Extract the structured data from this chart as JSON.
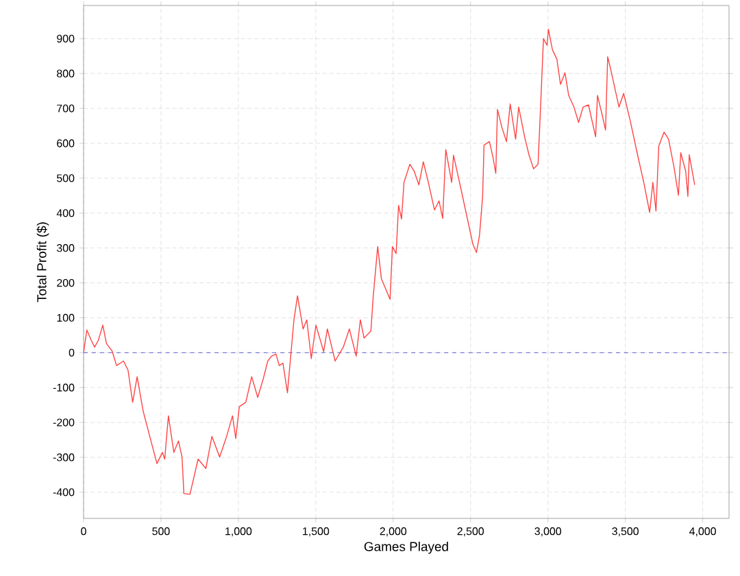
{
  "chart_data": {
    "type": "line",
    "xlabel": "Games Played",
    "ylabel": "Total Profit ($)",
    "xlim": [
      0,
      4170
    ],
    "ylim": [
      -475,
      995
    ],
    "xticks": [
      0,
      500,
      {
        "value": 1000,
        "label": "1,000"
      },
      {
        "value": 1500,
        "label": "1,500"
      },
      {
        "value": 2000,
        "label": "2,000"
      },
      {
        "value": 2500,
        "label": "2,500"
      },
      {
        "value": 3000,
        "label": "3,000"
      },
      {
        "value": 3500,
        "label": "3,500"
      },
      {
        "value": 4000,
        "label": "4,000"
      }
    ],
    "yticks": [
      -400,
      -300,
      -200,
      -100,
      0,
      100,
      200,
      300,
      400,
      500,
      600,
      700,
      800,
      900
    ],
    "grid": true,
    "line_style": "solid",
    "ref_lines": [
      {
        "axis": "y",
        "value": 0,
        "color": "#5a5ad2",
        "line_style": "dashed"
      }
    ],
    "series": [
      {
        "color": "#ff4444",
        "x": [
          0,
          21,
          50,
          71,
          95,
          124,
          148,
          184,
          213,
          258,
          287,
          317,
          346,
          385,
          420,
          474,
          509,
          524,
          548,
          583,
          613,
          636,
          648,
          687,
          740,
          790,
          829,
          879,
          924,
          962,
          983,
          1006,
          1048,
          1086,
          1125,
          1160,
          1190,
          1214,
          1243,
          1264,
          1288,
          1317,
          1338,
          1359,
          1382,
          1418,
          1442,
          1471,
          1501,
          1551,
          1575,
          1625,
          1678,
          1717,
          1761,
          1788,
          1812,
          1856,
          1871,
          1900,
          1924,
          1980,
          1995,
          2019,
          2035,
          2054,
          2070,
          2108,
          2136,
          2166,
          2195,
          2224,
          2267,
          2296,
          2320,
          2340,
          2378,
          2390,
          2442,
          2515,
          2538,
          2558,
          2578,
          2587,
          2622,
          2645,
          2663,
          2674,
          2703,
          2732,
          2756,
          2791,
          2811,
          2849,
          2878,
          2907,
          2936,
          2953,
          2971,
          2994,
          3003,
          3029,
          3058,
          3081,
          3110,
          3134,
          3168,
          3198,
          3227,
          3262,
          3308,
          3320,
          3349,
          3372,
          3386,
          3407,
          3459,
          3489,
          3532,
          3576,
          3619,
          3657,
          3678,
          3698,
          3716,
          3750,
          3779,
          3814,
          3843,
          3858,
          3890,
          3904,
          3913,
          3948
        ],
        "values": [
          0,
          65,
          35,
          16,
          35,
          79,
          26,
          5,
          -37,
          -24,
          -50,
          -142,
          -69,
          -168,
          -227,
          -318,
          -286,
          -305,
          -181,
          -286,
          -253,
          -299,
          -404,
          -406,
          -305,
          -332,
          -240,
          -299,
          -240,
          -181,
          -246,
          -155,
          -142,
          -69,
          -128,
          -76,
          -24,
          -10,
          -4,
          -37,
          -30,
          -115,
          -10,
          94,
          163,
          68,
          94,
          -17,
          79,
          3,
          68,
          -24,
          16,
          68,
          -10,
          94,
          42,
          62,
          160,
          304,
          212,
          153,
          304,
          284,
          422,
          383,
          488,
          540,
          520,
          481,
          547,
          494,
          409,
          435,
          385,
          582,
          488,
          566,
          461,
          311,
          287,
          337,
          448,
          595,
          605,
          560,
          514,
          697,
          645,
          605,
          713,
          612,
          704,
          619,
          566,
          527,
          540,
          710,
          900,
          881,
          927,
          868,
          841,
          769,
          802,
          737,
          704,
          660,
          704,
          710,
          619,
          737,
          684,
          638,
          848,
          809,
          704,
          743,
          664,
          573,
          488,
          402,
          488,
          406,
          592,
          632,
          612,
          533,
          451,
          573,
          520,
          448,
          567,
          481
        ]
      }
    ]
  }
}
